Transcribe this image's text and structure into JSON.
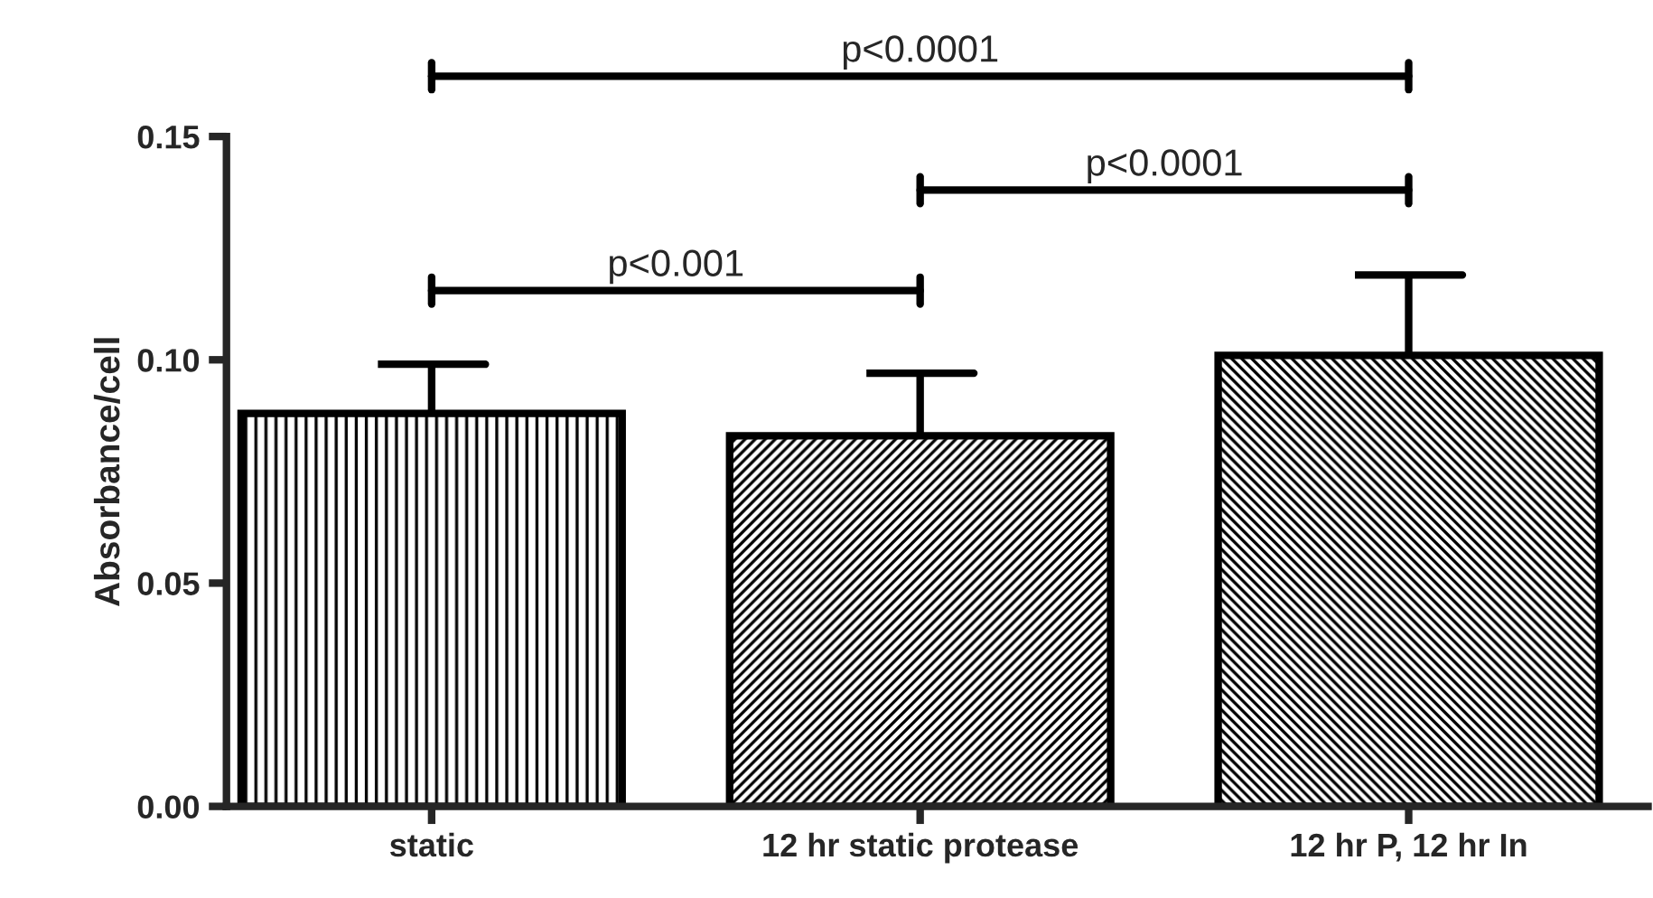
{
  "chart_data": {
    "type": "bar",
    "ylabel": "Absorbance/cell",
    "categories": [
      "static",
      "12 hr static protease",
      "12 hr P, 12 hr In"
    ],
    "values": [
      0.088,
      0.083,
      0.101
    ],
    "errors": [
      [
        0.088,
        0.099
      ],
      [
        0.083,
        0.097
      ],
      [
        0.101,
        0.119
      ]
    ],
    "colors": [
      "#000000",
      "#000000",
      "#000000"
    ],
    "ylim": [
      0,
      0.15
    ],
    "yticks": [
      {
        "value": 0,
        "label": "0.00"
      },
      {
        "value": 0.05,
        "label": "0.05"
      },
      {
        "value": 0.1,
        "label": "0.10"
      },
      {
        "value": 0.15,
        "label": "0.15"
      }
    ],
    "annotations": [
      "p<0.0001",
      "p<0.0001",
      "p<0.001"
    ],
    "grid": false
  }
}
